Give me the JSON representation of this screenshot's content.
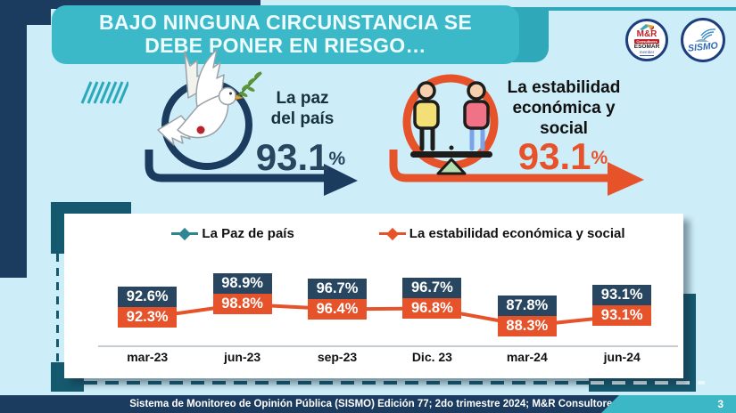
{
  "header": {
    "title": "BAJO NINGUNA CIRCUNSTANCIA SE DEBE PONER EN RIESGO…"
  },
  "logos": {
    "mr": {
      "title": "M&R",
      "subtitle": "Consultores",
      "line3": "ESOMAR",
      "line4": "member"
    },
    "sismo": {
      "title": "SISMO"
    }
  },
  "stats": [
    {
      "label": "La paz del país",
      "value": "93.1",
      "unit": "%"
    },
    {
      "label": "La estabilidad económica y social",
      "value": "93.1",
      "unit": "%"
    }
  ],
  "chart_data": {
    "type": "line",
    "categories": [
      "mar-23",
      "jun-23",
      "sep-23",
      "Dic. 23",
      "mar-24",
      "jun-24"
    ],
    "series": [
      {
        "name": "La Paz de país",
        "color": "#2e8693",
        "label_box_color": "#28465f",
        "values": [
          92.6,
          98.9,
          96.7,
          96.7,
          87.8,
          93.1
        ]
      },
      {
        "name": "La estabilidad económica y social",
        "color": "#e6532a",
        "label_box_color": "#e6532a",
        "values": [
          92.3,
          98.8,
          96.4,
          96.8,
          88.3,
          93.1
        ]
      }
    ],
    "value_suffix": "%",
    "ylim": [
      85,
      100
    ],
    "grid": false,
    "legend_position": "top",
    "xlabel": "",
    "ylabel": ""
  },
  "footer": {
    "text": "Sistema de Monitoreo de Opinión Pública (SISMO) Edición 77; 2do trimestre 2024; M&R Consultores",
    "page": "3"
  },
  "colors": {
    "navy": "#1b3c5f",
    "teal": "#3cb9c8",
    "teal_dark": "#15596f",
    "orange": "#e6532a",
    "background": "#cdeef8"
  }
}
